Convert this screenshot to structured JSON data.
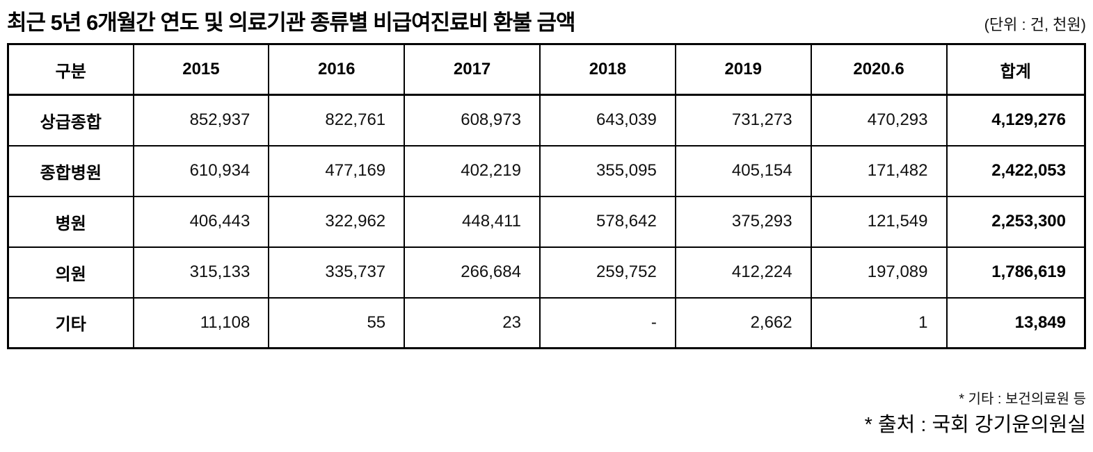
{
  "title": "최근 5년 6개월간 연도 및 의료기관 종류별 비급여진료비 환불 금액",
  "unit_label": "(단위 : 건, 천원)",
  "colors": {
    "text": "#000000",
    "border": "#000000",
    "background": "#ffffff"
  },
  "table": {
    "columns": [
      "구분",
      "2015",
      "2016",
      "2017",
      "2018",
      "2019",
      "2020.6",
      "합계"
    ],
    "rows": [
      {
        "label": "상급종합",
        "values": [
          "852,937",
          "822,761",
          "608,973",
          "643,039",
          "731,273",
          "470,293"
        ],
        "total": "4,129,276"
      },
      {
        "label": "종합병원",
        "values": [
          "610,934",
          "477,169",
          "402,219",
          "355,095",
          "405,154",
          "171,482"
        ],
        "total": "2,422,053"
      },
      {
        "label": "병원",
        "values": [
          "406,443",
          "322,962",
          "448,411",
          "578,642",
          "375,293",
          "121,549"
        ],
        "total": "2,253,300"
      },
      {
        "label": "의원",
        "values": [
          "315,133",
          "335,737",
          "266,684",
          "259,752",
          "412,224",
          "197,089"
        ],
        "total": "1,786,619"
      },
      {
        "label": "기타",
        "values": [
          "11,108",
          "55",
          "23",
          "-",
          "2,662",
          "1"
        ],
        "total": "13,849"
      }
    ]
  },
  "footnotes": {
    "etc": "* 기타 : 보건의료원 등",
    "source": "* 출처 : 국회 강기윤의원실"
  }
}
